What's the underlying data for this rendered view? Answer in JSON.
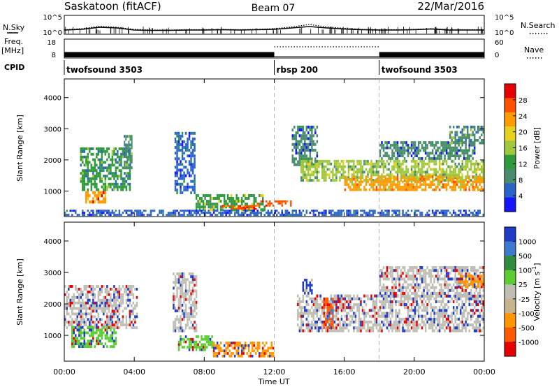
{
  "header": {
    "station": "Saskatoon (fitACF)",
    "beam": "Beam 07",
    "date": "22/Mar/2016"
  },
  "left_labels": {
    "nsky": "N.Sky",
    "freq": "Freq.",
    "freq_unit": "[MHz]",
    "cpid": "CPID"
  },
  "right_labels": {
    "nsearch": "N.Search",
    "nave": "Nave"
  },
  "chart_data": [
    {
      "type": "line",
      "name": "noise-panel",
      "left_ticks": [
        "10^5",
        "10^0"
      ],
      "right_ticks": [
        "10^5",
        "10^0"
      ],
      "ylim": [
        0,
        5
      ],
      "y_scale": "log",
      "series": [
        {
          "name": "N.Sky",
          "style": "solid"
        },
        {
          "name": "N.Search",
          "style": "dotted"
        }
      ],
      "x": [
        0,
        1,
        2,
        3,
        4,
        5,
        6,
        7,
        8,
        9,
        10,
        11,
        12,
        13,
        14,
        15,
        16,
        17,
        18,
        19,
        20,
        21,
        22,
        23,
        24
      ],
      "nsky_values": [
        1.0,
        1.2,
        1.8,
        1.6,
        1.0,
        0.9,
        0.9,
        1.0,
        1.0,
        1.1,
        1.0,
        1.1,
        1.2,
        1.6,
        2.0,
        1.6,
        1.3,
        1.1,
        1.0,
        1.0,
        1.1,
        1.3,
        1.0,
        1.0,
        1.0
      ],
      "nsearch_values": [
        1.1,
        1.4,
        2.1,
        1.8,
        1.2,
        1.0,
        1.0,
        1.1,
        1.1,
        1.2,
        1.1,
        1.2,
        1.4,
        1.9,
        2.6,
        1.9,
        1.5,
        1.2,
        1.1,
        1.1,
        1.2,
        1.4,
        1.1,
        1.1,
        1.1
      ]
    },
    {
      "type": "bar",
      "name": "freq-nave-panel",
      "left_ticks": [
        "18",
        "8"
      ],
      "right_ticks": [
        "60",
        "0"
      ],
      "ylim_freq": [
        8,
        18
      ],
      "ylim_nave": [
        0,
        60
      ],
      "freq_segments": [
        {
          "start": 0,
          "end": 12,
          "value": 11
        },
        {
          "start": 18,
          "end": 24,
          "value": 11
        }
      ],
      "nave_segments": [
        {
          "start": 12,
          "end": 18,
          "value": 36
        }
      ]
    },
    {
      "type": "table",
      "name": "cpid",
      "segments": [
        {
          "start": 0,
          "end": 12,
          "label": "twofsound 3503"
        },
        {
          "start": 12,
          "end": 18,
          "label": "rbsp 200"
        },
        {
          "start": 18,
          "end": 24,
          "label": "twofsound 3503"
        }
      ]
    },
    {
      "type": "heatmap",
      "name": "power",
      "ylabel": "Slant Range [km]",
      "yticks": [
        "1000",
        "2000",
        "3000",
        "4000"
      ],
      "ylim": [
        180,
        4600
      ],
      "colorbar_title": "Power [dB]",
      "colorbar_ticks": [
        "4",
        "8",
        "12",
        "16",
        "20",
        "24",
        "28"
      ],
      "colorbar_range": [
        0,
        32
      ],
      "colors": [
        "#1414ff",
        "#2a64c8",
        "#4a8c6e",
        "#2e9a3c",
        "#a0c83c",
        "#e6d21e",
        "#ff9a00",
        "#ff5000",
        "#e60000"
      ],
      "features": [
        {
          "t0": 0.9,
          "t1": 3.8,
          "r0": 1000,
          "r1": 2400,
          "level": 12
        },
        {
          "t0": 1.2,
          "t1": 2.4,
          "r0": 600,
          "r1": 1000,
          "level": 24
        },
        {
          "t0": 3.4,
          "t1": 3.9,
          "r0": 1700,
          "r1": 2800,
          "level": 10
        },
        {
          "t0": 6.3,
          "t1": 7.5,
          "r0": 900,
          "r1": 2900,
          "level": 7
        },
        {
          "t0": 7.5,
          "t1": 11.5,
          "r0": 350,
          "r1": 900,
          "level": 14
        },
        {
          "t0": 9.0,
          "t1": 11.0,
          "r0": 400,
          "r1": 550,
          "level": 26
        },
        {
          "t0": 11.0,
          "t1": 13.0,
          "r0": 500,
          "r1": 700,
          "level": 28
        },
        {
          "t0": 13.0,
          "t1": 14.5,
          "r0": 1800,
          "r1": 3100,
          "level": 9
        },
        {
          "t0": 13.5,
          "t1": 24.0,
          "r0": 1300,
          "r1": 2000,
          "level": 15
        },
        {
          "t0": 16.0,
          "t1": 24.0,
          "r0": 1000,
          "r1": 1500,
          "level": 22
        },
        {
          "t0": 18.0,
          "t1": 23.5,
          "r0": 2000,
          "r1": 2600,
          "level": 8
        },
        {
          "t0": 22.0,
          "t1": 24.0,
          "r0": 2500,
          "r1": 3100,
          "level": 10
        },
        {
          "t0": 0.0,
          "t1": 24.0,
          "r0": 200,
          "r1": 400,
          "level": 5
        }
      ]
    },
    {
      "type": "heatmap",
      "name": "velocity",
      "ylabel": "Slant Range [km]",
      "yticks": [
        "1000",
        "2000",
        "3000",
        "4000"
      ],
      "ylim": [
        180,
        4600
      ],
      "colorbar_title": "Velocity [m s",
      "colorbar_title_exp": "-1",
      "colorbar_title_end": "]",
      "colorbar_ticks": [
        "1000",
        "500",
        "100",
        "25",
        "-25",
        "-100",
        "-500",
        "-1000"
      ],
      "colors": [
        "#1e3cc8",
        "#3c7ad2",
        "#2e8c3c",
        "#5acd32",
        "#bebeb4",
        "#c8b48c",
        "#ff9600",
        "#ff5a00",
        "#e60000"
      ],
      "features": [
        {
          "t0": 0.0,
          "t1": 4.2,
          "r0": 1200,
          "r1": 2600,
          "level": 4
        },
        {
          "t0": 0.4,
          "t1": 3.0,
          "r0": 600,
          "r1": 1300,
          "level": 3
        },
        {
          "t0": 6.2,
          "t1": 7.6,
          "r0": 1100,
          "r1": 3000,
          "level": 4
        },
        {
          "t0": 6.5,
          "t1": 8.5,
          "r0": 500,
          "r1": 1000,
          "level": 3
        },
        {
          "t0": 8.5,
          "t1": 12.0,
          "r0": 300,
          "r1": 800,
          "level": 6
        },
        {
          "t0": 13.3,
          "t1": 24.0,
          "r0": 1100,
          "r1": 2300,
          "level": 4
        },
        {
          "t0": 13.6,
          "t1": 14.2,
          "r0": 2300,
          "r1": 2800,
          "level": 0
        },
        {
          "t0": 14.8,
          "t1": 15.4,
          "r0": 1200,
          "r1": 2200,
          "level": 7
        },
        {
          "t0": 18.0,
          "t1": 24.0,
          "r0": 2200,
          "r1": 3200,
          "level": 4
        },
        {
          "t0": 22.5,
          "t1": 24.0,
          "r0": 2500,
          "r1": 3000,
          "level": 6
        }
      ]
    }
  ],
  "x_axis": {
    "title": "Time UT",
    "ticks": [
      "00:00",
      "04:00",
      "08:00",
      "12:00",
      "16:00",
      "20:00",
      "00:00"
    ],
    "tick_hours": [
      0,
      4,
      8,
      12,
      16,
      20,
      24
    ],
    "xlim": [
      0,
      24
    ],
    "mode_change_hours": [
      12,
      18
    ]
  }
}
